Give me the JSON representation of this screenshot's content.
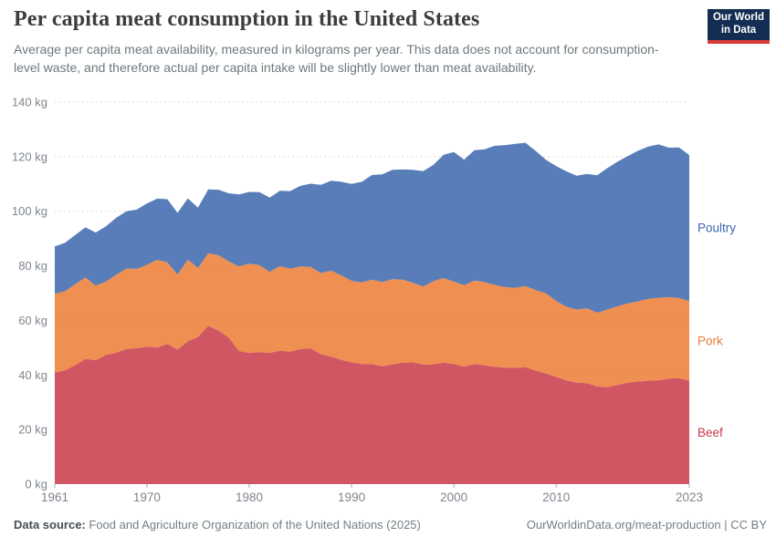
{
  "header": {
    "title": "Per capita meat consumption in the United States",
    "subtitle": "Average per capita meat availability, measured in kilograms per year. This data does not account for consumption-level waste, and therefore actual per capita intake will be slightly lower than meat availability.",
    "logo": {
      "line1": "Our World",
      "line2": "in Data",
      "bg_color": "#132E52",
      "accent_color": "#D93B3B"
    }
  },
  "chart_data": {
    "type": "area",
    "stacked": true,
    "title": "Per capita meat consumption in the United States",
    "unit": "kg",
    "ylabel": "",
    "xlabel": "",
    "ylim": [
      0,
      140
    ],
    "grid": true,
    "gridline_color": "#dcdcdc",
    "axis_text_color": "#7f868d",
    "fill_opacity": 0.85,
    "legend_position": "right-edge-labels",
    "y_ticks": [
      0,
      20,
      40,
      60,
      80,
      100,
      120,
      140
    ],
    "x_ticks": [
      1961,
      1970,
      1980,
      1990,
      2000,
      2010,
      2023
    ],
    "x": [
      1961,
      1962,
      1963,
      1964,
      1965,
      1966,
      1967,
      1968,
      1969,
      1970,
      1971,
      1972,
      1973,
      1974,
      1975,
      1976,
      1977,
      1978,
      1979,
      1980,
      1981,
      1982,
      1983,
      1984,
      1985,
      1986,
      1987,
      1988,
      1989,
      1990,
      1991,
      1992,
      1993,
      1994,
      1995,
      1996,
      1997,
      1998,
      1999,
      2000,
      2001,
      2002,
      2003,
      2004,
      2005,
      2006,
      2007,
      2008,
      2009,
      2010,
      2011,
      2012,
      2013,
      2014,
      2015,
      2016,
      2017,
      2018,
      2019,
      2020,
      2021,
      2022,
      2023
    ],
    "series": [
      {
        "name": "Beef",
        "color": "#C93848",
        "values": [
          40.9,
          41.7,
          43.6,
          45.9,
          45.4,
          47.3,
          48.2,
          49.5,
          49.8,
          50.4,
          50.1,
          51.4,
          49.3,
          52.4,
          53.9,
          58.0,
          56.3,
          53.7,
          48.8,
          48.0,
          48.4,
          48.0,
          48.9,
          48.5,
          49.5,
          49.8,
          47.6,
          46.7,
          45.5,
          44.6,
          44.0,
          44.0,
          43.2,
          43.9,
          44.5,
          44.6,
          43.8,
          43.9,
          44.5,
          44.0,
          43.1,
          44.0,
          43.5,
          43.0,
          42.7,
          42.6,
          42.8,
          41.6,
          40.5,
          39.3,
          38.0,
          37.2,
          37.0,
          35.8,
          35.5,
          36.4,
          37.2,
          37.6,
          37.9,
          38.0,
          38.7,
          38.8,
          37.9
        ]
      },
      {
        "name": "Pork",
        "color": "#EC7B33",
        "values": [
          28.8,
          29.0,
          29.7,
          29.8,
          27.3,
          26.9,
          28.5,
          29.5,
          29.1,
          30.0,
          32.1,
          29.9,
          27.5,
          29.9,
          25.3,
          26.6,
          27.6,
          27.9,
          31.0,
          32.8,
          31.9,
          29.8,
          31.0,
          30.5,
          30.3,
          29.8,
          29.8,
          31.5,
          31.0,
          29.9,
          29.9,
          30.9,
          30.9,
          31.2,
          30.4,
          29.2,
          28.6,
          30.5,
          31.0,
          30.2,
          29.8,
          30.6,
          30.5,
          30.0,
          29.5,
          29.3,
          29.8,
          29.5,
          29.4,
          27.8,
          27.0,
          26.8,
          27.4,
          27.0,
          28.5,
          28.8,
          29.0,
          29.4,
          30.0,
          30.3,
          29.8,
          29.4,
          29.2
        ]
      },
      {
        "name": "Poultry",
        "color": "#3B66AD",
        "values": [
          17.4,
          17.7,
          18.0,
          18.4,
          19.5,
          20.3,
          20.9,
          21.0,
          21.7,
          22.4,
          22.4,
          23.1,
          22.6,
          22.4,
          22.1,
          23.4,
          24.0,
          25.0,
          26.4,
          26.3,
          26.7,
          27.2,
          27.6,
          28.4,
          29.5,
          30.5,
          32.3,
          33.0,
          34.3,
          35.5,
          36.9,
          38.4,
          39.4,
          40.1,
          40.4,
          41.4,
          42.3,
          42.6,
          45.2,
          47.5,
          46.0,
          47.8,
          48.7,
          51.0,
          52.0,
          52.8,
          52.5,
          51.0,
          48.9,
          49.4,
          49.6,
          49.0,
          49.3,
          50.4,
          51.8,
          53.0,
          54.0,
          55.2,
          55.8,
          56.2,
          54.8,
          55.2,
          53.5
        ]
      }
    ]
  },
  "footer": {
    "source_label": "Data source:",
    "source_value": "Food and Agriculture Organization of the United Nations (2025)",
    "link": "OurWorldinData.org/meat-production | CC BY"
  }
}
